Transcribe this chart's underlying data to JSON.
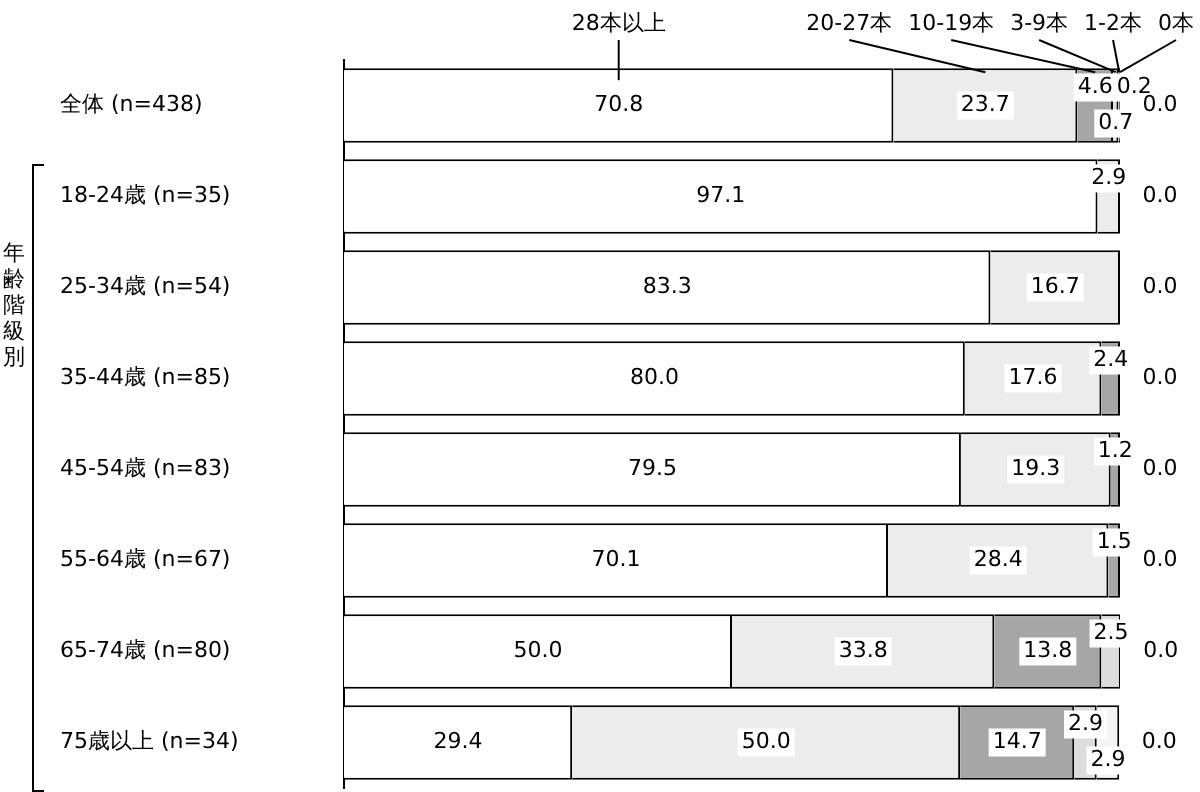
{
  "chart_data": {
    "type": "bar",
    "orientation": "horizontal",
    "stacked": true,
    "legend": false,
    "xlim": [
      0,
      100
    ],
    "categories": [
      "全体 (n=438)",
      "18-24歳 (n=35)",
      "25-34歳 (n=54)",
      "35-44歳 (n=85)",
      "45-54歳 (n=83)",
      "55-64歳 (n=67)",
      "65-74歳 (n=80)",
      "75歳以上 (n=34)"
    ],
    "series": [
      {
        "name": "28本以上",
        "color": "#ffffff",
        "values": [
          70.8,
          97.1,
          83.3,
          80.0,
          79.5,
          70.1,
          50.0,
          29.4
        ],
        "value_labels": [
          "70.8",
          "97.1",
          "83.3",
          "80.0",
          "79.5",
          "70.1",
          "50.0",
          "29.4"
        ]
      },
      {
        "name": "20-27本",
        "color": "#ececec",
        "values": [
          23.7,
          2.9,
          16.7,
          17.6,
          19.3,
          28.4,
          33.8,
          50.0
        ],
        "value_labels": [
          "23.7",
          "2.9",
          "16.7",
          "17.6",
          "19.3",
          "28.4",
          "33.8",
          "50.0"
        ]
      },
      {
        "name": "10-19本",
        "color": "#a6a6a6",
        "values": [
          4.6,
          0,
          0,
          2.4,
          1.2,
          1.5,
          13.8,
          14.7
        ],
        "value_labels": [
          "4.6",
          null,
          null,
          "2.4",
          "1.2",
          "1.5",
          "13.8",
          "14.7"
        ]
      },
      {
        "name": "3-9本",
        "color": "#dcdcdc",
        "values": [
          0.7,
          0,
          0,
          0,
          0,
          0,
          2.5,
          2.9
        ],
        "value_labels": [
          "0.7",
          null,
          null,
          null,
          null,
          null,
          "2.5",
          "2.9"
        ]
      },
      {
        "name": "1-2本",
        "color": "#f4f4f4",
        "values": [
          0.2,
          0,
          0,
          0,
          0,
          0,
          0,
          2.9
        ],
        "value_labels": [
          "0.2",
          null,
          null,
          null,
          null,
          null,
          null,
          "2.9"
        ]
      },
      {
        "name": "0本",
        "values": [
          0,
          0,
          0,
          0,
          0,
          0,
          0,
          0
        ],
        "value_labels": [
          "0.0",
          "0.0",
          "0.0",
          "0.0",
          "0.0",
          "0.0",
          "0.0",
          "0.0"
        ]
      }
    ],
    "annotations": [
      "年齢階級別"
    ]
  }
}
